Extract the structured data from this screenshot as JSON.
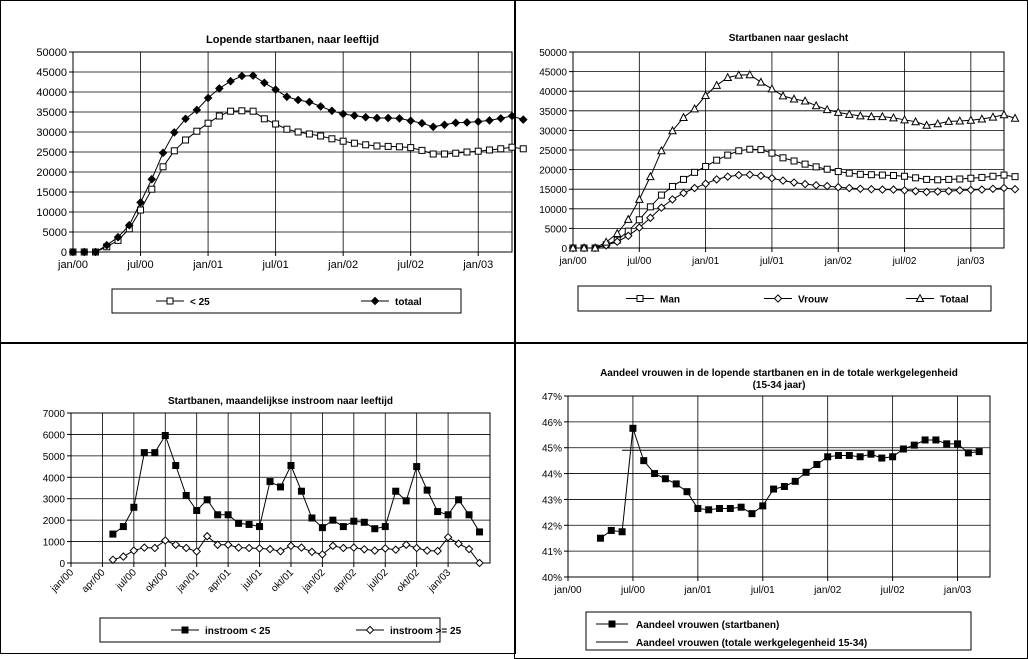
{
  "chart_data": [
    {
      "type": "line",
      "title": "Lopende startbanen, naar leeftijd",
      "subtitle": "",
      "xlabel": "",
      "ylabel": "",
      "x_start": "2000-01",
      "x_end": "2003-04",
      "x_ticks": [
        "jan/00",
        "jul/00",
        "jan/01",
        "jul/01",
        "jan/02",
        "jul/02",
        "jan/03"
      ],
      "y_ticks": [
        "0",
        "5000",
        "10000",
        "15000",
        "20000",
        "25000",
        "30000",
        "35000",
        "40000",
        "45000",
        "50000"
      ],
      "ylim": [
        0,
        50000
      ],
      "grid": true,
      "legend_position": "bottom",
      "series": [
        {
          "name": "< 25",
          "marker": "square-open",
          "x_start": "2000-01",
          "values": [
            0,
            0,
            0,
            1300,
            2900,
            5800,
            10500,
            15700,
            21300,
            25300,
            28000,
            30200,
            32200,
            34000,
            35200,
            35300,
            35200,
            33300,
            32000,
            30700,
            30000,
            29500,
            29000,
            28300,
            27700,
            27200,
            26800,
            26500,
            26400,
            26300,
            26100,
            25400,
            24500,
            24500,
            24700,
            25000,
            25200,
            25500,
            25800,
            26200,
            25800
          ]
        },
        {
          "name": "totaal",
          "marker": "diamond-filled",
          "x_start": "2000-01",
          "values": [
            0,
            0,
            0,
            1700,
            3700,
            6700,
            12400,
            18200,
            24800,
            29900,
            33300,
            35500,
            38500,
            40900,
            42700,
            44000,
            44100,
            42300,
            40600,
            38800,
            38000,
            37500,
            36400,
            35300,
            34500,
            34100,
            33700,
            33500,
            33500,
            33400,
            32800,
            32200,
            31300,
            31800,
            32300,
            32400,
            32600,
            32900,
            33400,
            34000,
            33100
          ]
        }
      ]
    },
    {
      "type": "line",
      "title": "Startbanen naar geslacht",
      "subtitle": "",
      "xlabel": "",
      "ylabel": "",
      "x_start": "2000-01",
      "x_end": "2003-04",
      "x_ticks": [
        "jan/00",
        "jul/00",
        "jan/01",
        "jul/01",
        "jan/02",
        "jul/02",
        "jan/03"
      ],
      "y_ticks": [
        "0",
        "5000",
        "10000",
        "15000",
        "20000",
        "25000",
        "30000",
        "35000",
        "40000",
        "45000",
        "50000"
      ],
      "ylim": [
        0,
        50000
      ],
      "grid": true,
      "legend_position": "bottom",
      "series": [
        {
          "name": "Man",
          "marker": "square-open",
          "x_start": "2000-01",
          "values": [
            0,
            0,
            0,
            800,
            2000,
            4300,
            7200,
            10500,
            13500,
            15700,
            17500,
            19300,
            20800,
            22400,
            23700,
            24800,
            25200,
            25100,
            24200,
            23000,
            22200,
            21400,
            20700,
            20100,
            19500,
            19100,
            18800,
            18700,
            18600,
            18500,
            18300,
            17900,
            17500,
            17400,
            17500,
            17600,
            17800,
            18000,
            18300,
            18600,
            18200
          ]
        },
        {
          "name": "Vrouw",
          "marker": "diamond-open",
          "x_start": "2000-01",
          "values": [
            0,
            0,
            0,
            700,
            1600,
            3100,
            5200,
            7700,
            10300,
            12400,
            14000,
            15300,
            16400,
            17500,
            18200,
            18600,
            18700,
            18400,
            17800,
            17200,
            16700,
            16300,
            16000,
            15800,
            15500,
            15300,
            15100,
            15000,
            14900,
            14900,
            14700,
            14500,
            14300,
            14400,
            14500,
            14700,
            14800,
            14900,
            15100,
            15300,
            15000
          ]
        },
        {
          "name": "Totaal",
          "marker": "triangle-open",
          "x_start": "2000-01",
          "values": [
            0,
            0,
            0,
            1500,
            3700,
            7300,
            12400,
            18200,
            24800,
            29900,
            33300,
            35500,
            38900,
            41500,
            43500,
            44100,
            44200,
            42300,
            40600,
            38800,
            38000,
            37500,
            36300,
            35300,
            34600,
            34100,
            33700,
            33500,
            33500,
            33200,
            32700,
            32200,
            31300,
            31700,
            32300,
            32400,
            32600,
            32900,
            33400,
            34000,
            33100
          ]
        }
      ]
    },
    {
      "type": "line",
      "title": "Startbanen, maandelijkse instroom naar leeftijd",
      "subtitle": "",
      "xlabel": "",
      "ylabel": "",
      "x_start": "2000-01",
      "x_end": "2003-05",
      "x_ticks": [
        "jan/00",
        "apr/00",
        "jul/00",
        "okt/00",
        "jan/01",
        "apr/01",
        "jul/01",
        "okt/01",
        "jan/02",
        "apr/02",
        "jul/02",
        "okt/02",
        "jan/03"
      ],
      "y_ticks": [
        "0",
        "1000",
        "2000",
        "3000",
        "4000",
        "5000",
        "6000",
        "7000"
      ],
      "ylim": [
        0,
        7000
      ],
      "grid": true,
      "legend_position": "bottom",
      "series": [
        {
          "name": "instroom < 25",
          "marker": "square-filled",
          "x_start": "2000-05",
          "values": [
            1350,
            1700,
            2600,
            5150,
            5150,
            5950,
            4550,
            3150,
            2450,
            2950,
            2250,
            2250,
            1850,
            1800,
            1700,
            3800,
            3550,
            4550,
            3350,
            2100,
            1650,
            2000,
            1700,
            1950,
            1900,
            1600,
            1700,
            3350,
            2900,
            4500,
            3400,
            2400,
            2250,
            2950,
            2250,
            1450
          ]
        },
        {
          "name": "instroom >= 25",
          "marker": "diamond-open",
          "x_start": "2000-05",
          "values": [
            150,
            300,
            580,
            720,
            700,
            1050,
            850,
            700,
            540,
            1250,
            850,
            850,
            720,
            700,
            680,
            650,
            550,
            800,
            720,
            520,
            400,
            800,
            700,
            720,
            640,
            580,
            680,
            620,
            850,
            700,
            580,
            560,
            1200,
            900,
            650,
            0
          ]
        }
      ]
    },
    {
      "type": "line",
      "title": "Aandeel vrouwen in de lopende startbanen en in de totale werkgelegenheid",
      "subtitle": "(15-34 jaar)",
      "xlabel": "",
      "ylabel": "",
      "x_start": "2000-01",
      "x_end": "2003-04",
      "x_ticks": [
        "jan/00",
        "jul/00",
        "jan/01",
        "jul/01",
        "jan/02",
        "jul/02",
        "jan/03"
      ],
      "y_ticks": [
        "40%",
        "41%",
        "42%",
        "43%",
        "44%",
        "45%",
        "46%",
        "47%"
      ],
      "ylim": [
        40,
        47
      ],
      "grid": true,
      "legend_position": "bottom",
      "series": [
        {
          "name": "Aandeel vrouwen (startbanen)",
          "marker": "square-filled",
          "x_start": "2000-04",
          "values": [
            41.5,
            41.8,
            41.75,
            45.75,
            44.5,
            44.0,
            43.8,
            43.6,
            43.3,
            42.65,
            42.6,
            42.65,
            42.65,
            42.7,
            42.45,
            42.75,
            43.4,
            43.5,
            43.7,
            44.05,
            44.35,
            44.65,
            44.7,
            44.7,
            44.65,
            44.75,
            44.6,
            44.65,
            44.95,
            45.1,
            45.3,
            45.3,
            45.15,
            45.15,
            44.8,
            44.85
          ]
        },
        {
          "name": "Aandeel vrouwen (totale werkgelegenheid 15-34)",
          "marker": "none",
          "x_start": "2000-06",
          "values": [
            44.9,
            44.9,
            44.9,
            44.9,
            44.9,
            44.9,
            44.9,
            44.9,
            44.9,
            44.9,
            44.9,
            44.9,
            44.9,
            44.9,
            44.9,
            44.9,
            44.9,
            44.9,
            44.9,
            44.9,
            44.9,
            44.9,
            44.9,
            44.9,
            44.9,
            44.9,
            44.9,
            44.9,
            44.9,
            44.9,
            44.9,
            44.9,
            44.9,
            44.9
          ]
        }
      ]
    }
  ]
}
